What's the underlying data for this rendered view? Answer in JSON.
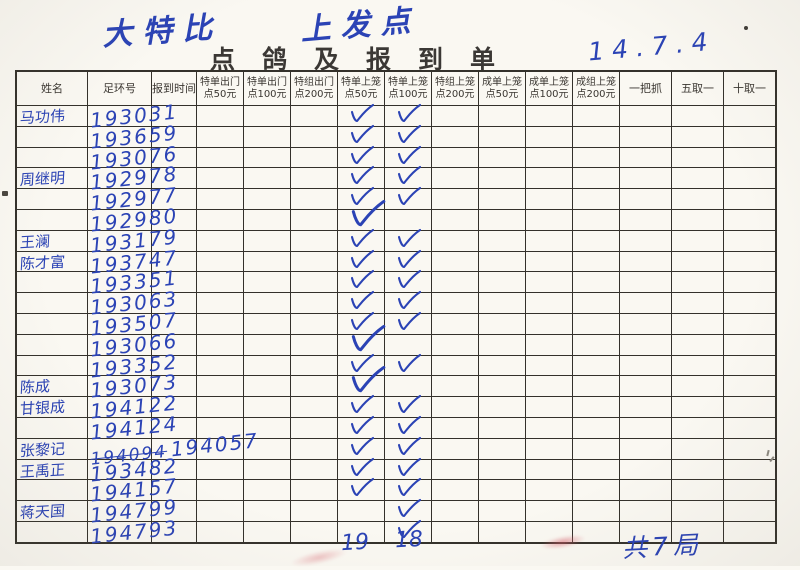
{
  "colors": {
    "ink": "#2b43b5",
    "line": "#34312b",
    "paper": "#faf8f2",
    "red": "#d65c68"
  },
  "icons": {
    "checkmark_icon": "✓"
  },
  "page": {
    "title": "点鸽及报到单",
    "annotations": {
      "top_left": "大特比",
      "top_right": "上发点",
      "date": "14.7.4",
      "count_50": "19",
      "count_100": "18",
      "bottom_right": "共7局"
    }
  },
  "table": {
    "headers": [
      {
        "line1": "姓名",
        "line2": ""
      },
      {
        "line1": "足环号",
        "line2": ""
      },
      {
        "line1": "报到时间",
        "line2": ""
      },
      {
        "line1": "特单出门",
        "line2": "点50元"
      },
      {
        "line1": "特单出门",
        "line2": "点100元"
      },
      {
        "line1": "特组出门",
        "line2": "点200元"
      },
      {
        "line1": "特单上笼",
        "line2": "点50元"
      },
      {
        "line1": "特单上笼",
        "line2": "点100元"
      },
      {
        "line1": "特组上笼",
        "line2": "点200元"
      },
      {
        "line1": "成单上笼",
        "line2": "点50元"
      },
      {
        "line1": "成单上笼",
        "line2": "点100元"
      },
      {
        "line1": "成组上笼",
        "line2": "点200元"
      },
      {
        "line1": "一把抓",
        "line2": ""
      },
      {
        "line1": "五取一",
        "line2": ""
      },
      {
        "line1": "十取一",
        "line2": ""
      }
    ],
    "rows": [
      {
        "name": "马功伟",
        "ring": "193031",
        "check50": true,
        "check100": true
      },
      {
        "name": "",
        "ring": "193659",
        "check50": true,
        "check100": true
      },
      {
        "name": "",
        "ring": "193076",
        "check50": true,
        "check100": true
      },
      {
        "name": "周继明",
        "ring": "192978",
        "check50": true,
        "check100": true
      },
      {
        "name": "",
        "ring": "192977",
        "check50": true,
        "check100": true
      },
      {
        "name": "",
        "ring": "192980",
        "check50": true,
        "check100": false
      },
      {
        "name": "王澜",
        "ring": "193179",
        "check50": true,
        "check100": true
      },
      {
        "name": "陈才富",
        "ring": "193747",
        "check50": true,
        "check100": true
      },
      {
        "name": "",
        "ring": "193351",
        "check50": true,
        "check100": true
      },
      {
        "name": "",
        "ring": "193063",
        "check50": true,
        "check100": true
      },
      {
        "name": "",
        "ring": "193507",
        "check50": true,
        "check100": true
      },
      {
        "name": "",
        "ring": "193066",
        "check50": true,
        "check100": false
      },
      {
        "name": "",
        "ring": "193352",
        "check50": true,
        "check100": true
      },
      {
        "name": "陈成",
        "ring": "193073",
        "check50": true,
        "check100": false
      },
      {
        "name": "甘银成",
        "ring": "194122",
        "check50": true,
        "check100": true
      },
      {
        "name": "",
        "ring": "194124",
        "check50": true,
        "check100": true
      },
      {
        "name": "张黎记",
        "ring_struck": "194094",
        "ring": "194057",
        "check50": true,
        "check100": true
      },
      {
        "name": "王禹正",
        "ring": "193482",
        "check50": true,
        "check100": true
      },
      {
        "name": "",
        "ring": "194157",
        "check50": true,
        "check100": true
      },
      {
        "name": "蒋天国",
        "ring": "194799",
        "check50": false,
        "check100": true
      },
      {
        "name": "",
        "ring": "194793",
        "check50": false,
        "check100": true
      }
    ]
  }
}
